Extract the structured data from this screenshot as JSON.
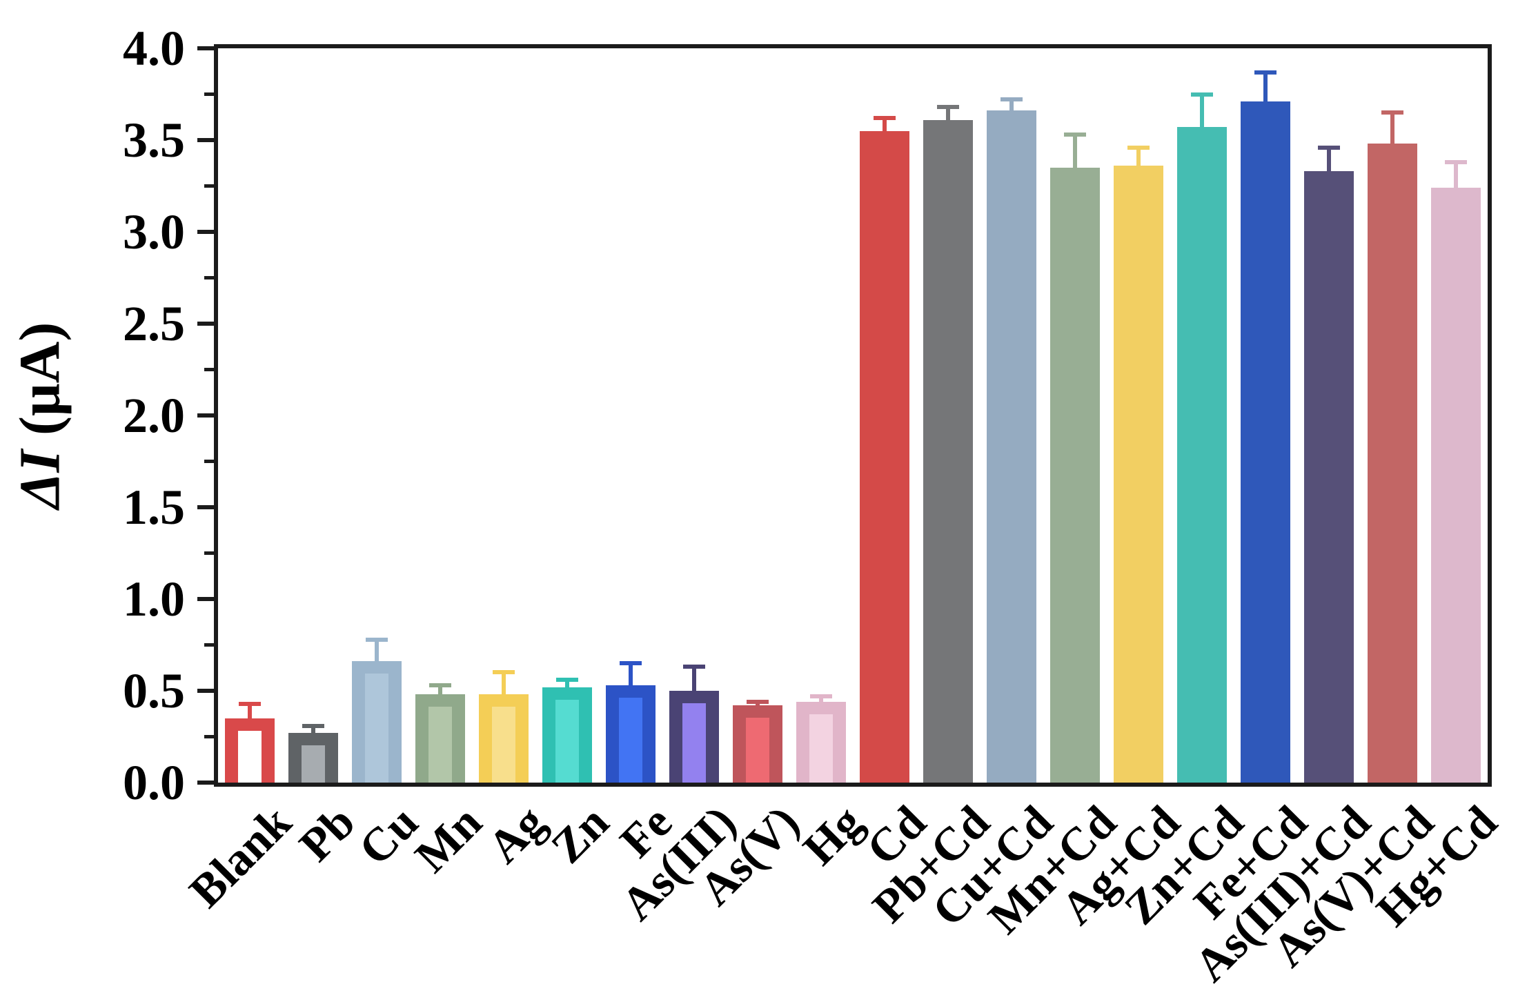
{
  "figure": {
    "background": "#ffffff",
    "frame_color": "#1b1b1b",
    "text_color": "#000000",
    "y_axis": {
      "title_main": "ΔI",
      "title_units": " (μA)",
      "tick_labels": [
        "0.0",
        "0.5",
        "1.0",
        "1.5",
        "2.0",
        "2.5",
        "3.0",
        "3.5",
        "4.0"
      ],
      "min": 0,
      "max": 4,
      "minor_step": 0.25
    }
  },
  "chart_data": {
    "type": "bar",
    "title": "",
    "xlabel": "",
    "ylabel": "ΔI (μA)",
    "ylim": [
      0,
      4
    ],
    "grid": false,
    "legend": false,
    "categories": [
      "Blank",
      "Pb",
      "Cu",
      "Mn",
      "Ag",
      "Zn",
      "Fe",
      "As(III)",
      "As(V)",
      "Hg",
      "Cd",
      "Pb+Cd",
      "Cu+Cd",
      "Mn+Cd",
      "Ag+Cd",
      "Zn+Cd",
      "Fe+Cd",
      "As(III)+Cd",
      "As(V)+Cd",
      "Hg+Cd"
    ],
    "values": [
      0.35,
      0.27,
      0.66,
      0.48,
      0.48,
      0.52,
      0.53,
      0.5,
      0.42,
      0.44,
      3.55,
      3.61,
      3.66,
      3.35,
      3.36,
      3.57,
      3.71,
      3.33,
      3.48,
      3.24
    ],
    "errors": [
      0.08,
      0.04,
      0.12,
      0.05,
      0.12,
      0.04,
      0.12,
      0.13,
      0.02,
      0.03,
      0.07,
      0.07,
      0.06,
      0.18,
      0.1,
      0.18,
      0.16,
      0.13,
      0.17,
      0.14
    ],
    "bar_styles": [
      {
        "edge": "#d9494a",
        "fill": "#ffffff",
        "solid": false
      },
      {
        "edge": "#5f6366",
        "fill": "#a7acb0",
        "solid": false
      },
      {
        "edge": "#9bb5cc",
        "fill": "#aec6da",
        "solid": false
      },
      {
        "edge": "#90a98b",
        "fill": "#b2c6a9",
        "solid": false
      },
      {
        "edge": "#f4ce56",
        "fill": "#f8df8c",
        "solid": false
      },
      {
        "edge": "#2fc0b2",
        "fill": "#55dcd1",
        "solid": false
      },
      {
        "edge": "#2c53c6",
        "fill": "#4274f3",
        "solid": false
      },
      {
        "edge": "#4a4374",
        "fill": "#9381ef",
        "solid": false
      },
      {
        "edge": "#bf555b",
        "fill": "#ee6a72",
        "solid": false
      },
      {
        "edge": "#e1b5c9",
        "fill": "#f3d3e1",
        "solid": false
      },
      {
        "edge": "#d44a48",
        "fill": "#d44a48",
        "solid": true
      },
      {
        "edge": "#757678",
        "fill": "#757678",
        "solid": true
      },
      {
        "edge": "#95abc1",
        "fill": "#95abc1",
        "solid": true
      },
      {
        "edge": "#98ae94",
        "fill": "#98ae94",
        "solid": true
      },
      {
        "edge": "#f2cf62",
        "fill": "#f2cf62",
        "solid": true
      },
      {
        "edge": "#45bdb2",
        "fill": "#45bdb2",
        "solid": true
      },
      {
        "edge": "#2f58ba",
        "fill": "#2f58ba",
        "solid": true
      },
      {
        "edge": "#565078",
        "fill": "#565078",
        "solid": true
      },
      {
        "edge": "#c26665",
        "fill": "#c26665",
        "solid": true
      },
      {
        "edge": "#ddb8cc",
        "fill": "#ddb8cc",
        "solid": true
      }
    ]
  }
}
